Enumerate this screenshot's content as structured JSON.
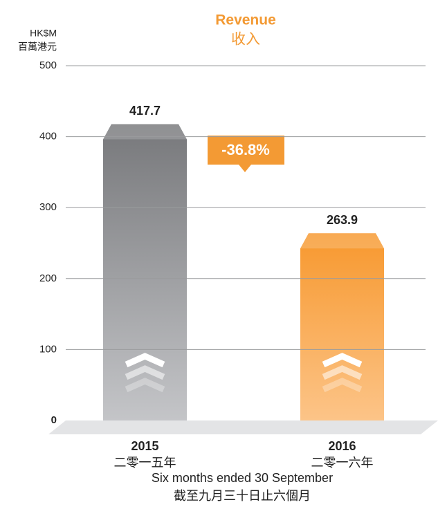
{
  "chart_data": {
    "type": "bar",
    "title": "Revenue",
    "title_zh": "收入",
    "ylabel": "HK$M",
    "ylabel_zh": "百萬港元",
    "categories": [
      "2015",
      "2016"
    ],
    "categories_zh": [
      "二零一五年",
      "二零一六年"
    ],
    "values": [
      417.7,
      263.9
    ],
    "colors": [
      "#8a8b8e",
      "#f7a03a"
    ],
    "ylim": [
      0,
      500
    ],
    "yticks": [
      0,
      100,
      200,
      300,
      400,
      500
    ],
    "grid": true,
    "annotation": "-36.8%",
    "xlabel": "Six months ended 30 September",
    "xlabel_zh": "截至九月三十日止六個月"
  }
}
